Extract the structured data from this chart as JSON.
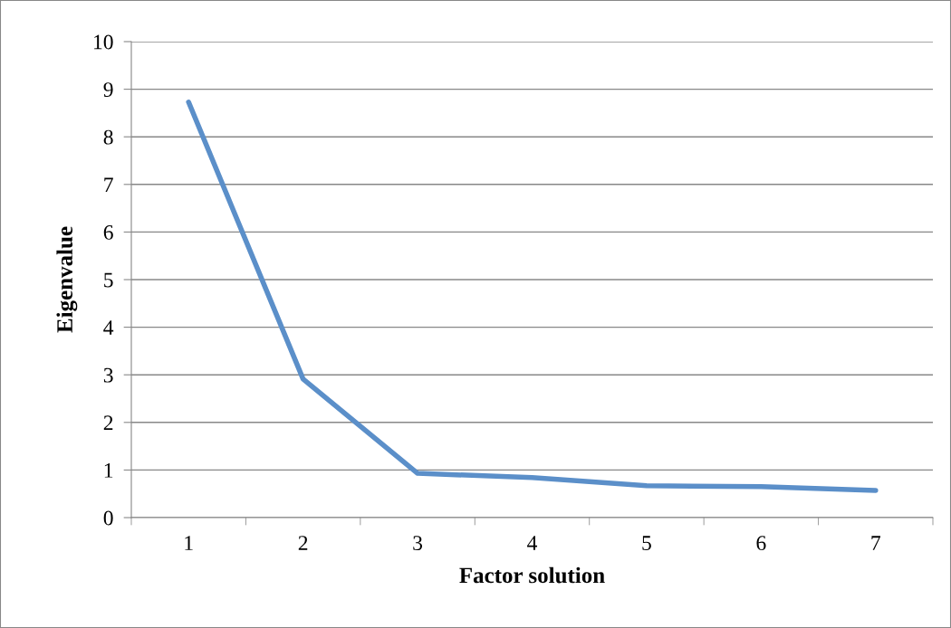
{
  "chart_data": {
    "type": "line",
    "xlabel": "Factor solution",
    "ylabel": "Eigenvalue",
    "categories": [
      "1",
      "2",
      "3",
      "4",
      "5",
      "6",
      "7"
    ],
    "series": [
      {
        "color": "#5b8fc9",
        "values": [
          8.73,
          2.91,
          0.93,
          0.84,
          0.67,
          0.65,
          0.57
        ]
      }
    ],
    "ylim": [
      0,
      10
    ],
    "yticks": [
      0,
      1,
      2,
      3,
      4,
      5,
      6,
      7,
      8,
      9,
      10
    ],
    "grid": "y",
    "legend": false,
    "marker": "none",
    "line_style": "solid"
  }
}
